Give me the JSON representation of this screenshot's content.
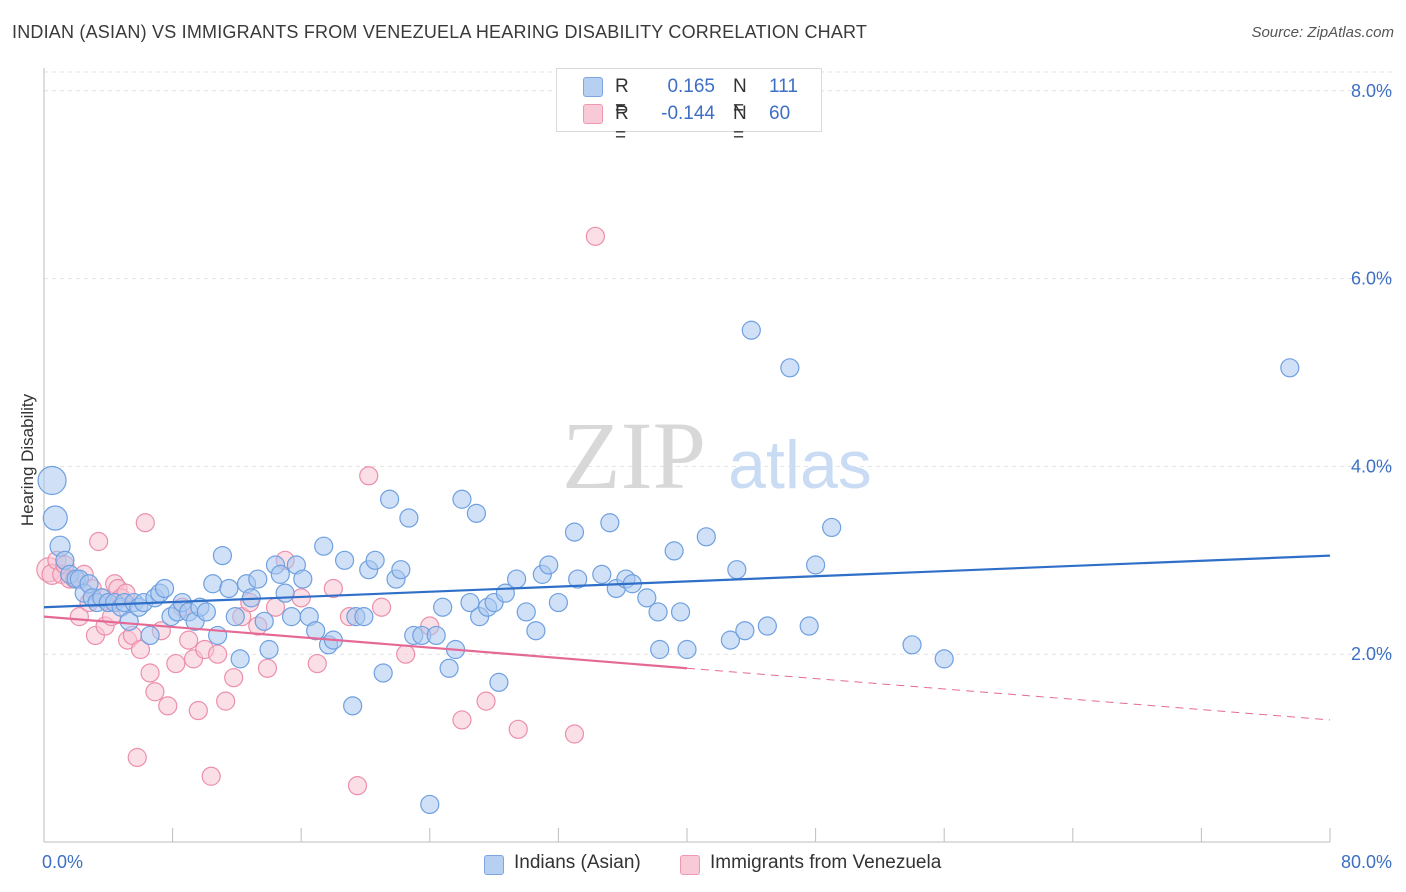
{
  "header": {
    "title": "INDIAN (ASIAN) VS IMMIGRANTS FROM VENEZUELA HEARING DISABILITY CORRELATION CHART",
    "source": "Source: ZipAtlas.com"
  },
  "watermark": {
    "zip": "ZIP",
    "atlas": "atlas"
  },
  "stats": [
    {
      "r_label": "R =",
      "r_value": "0.165",
      "n_label": "N =",
      "n_value": "111"
    },
    {
      "r_label": "R =",
      "r_value": "-0.144",
      "n_label": "N =",
      "n_value": "60"
    }
  ],
  "colors": {
    "blue_fill": "#aac8f0",
    "blue_stroke": "#6fa0e0",
    "blue_line": "#2f6fc8",
    "pink_fill": "#f7c4d3",
    "pink_stroke": "#ec8fab",
    "pink_line": "#e46a95",
    "axis_text": "#3d6fc4",
    "grid": "#e2e2e2"
  },
  "chart_data": {
    "type": "scatter",
    "ylabel": "Hearing Disability",
    "xlim": [
      0,
      80
    ],
    "ylim": [
      0,
      8.2
    ],
    "x_tick_labels": [
      "0.0%",
      "80.0%"
    ],
    "y_ticks": [
      2,
      4,
      6,
      8
    ],
    "y_tick_labels": [
      "2.0%",
      "4.0%",
      "6.0%",
      "8.0%"
    ],
    "grid": true,
    "legend_position": "bottom-center",
    "series": [
      {
        "name": "Indians (Asian)",
        "color": "#aac8f0",
        "trend": {
          "x": [
            0,
            80
          ],
          "y": [
            2.5,
            3.05
          ]
        },
        "points": [
          [
            0.5,
            3.85,
            14
          ],
          [
            0.7,
            3.45,
            12
          ],
          [
            1.0,
            3.15,
            10
          ],
          [
            1.3,
            3.0,
            9
          ],
          [
            1.6,
            2.85,
            9
          ],
          [
            2.0,
            2.8,
            9
          ],
          [
            2.2,
            2.8,
            9
          ],
          [
            2.5,
            2.65,
            9
          ],
          [
            2.8,
            2.75,
            9
          ],
          [
            3.0,
            2.6,
            9
          ],
          [
            3.3,
            2.55,
            9
          ],
          [
            3.6,
            2.6,
            9
          ],
          [
            4.0,
            2.55,
            9
          ],
          [
            4.4,
            2.55,
            9
          ],
          [
            4.8,
            2.5,
            9
          ],
          [
            5.0,
            2.55,
            9
          ],
          [
            5.3,
            2.35,
            9
          ],
          [
            5.6,
            2.55,
            9
          ],
          [
            5.9,
            2.5,
            9
          ],
          [
            6.2,
            2.55,
            9
          ],
          [
            6.6,
            2.2,
            9
          ],
          [
            6.9,
            2.6,
            9
          ],
          [
            7.2,
            2.65,
            9
          ],
          [
            7.5,
            2.7,
            9
          ],
          [
            7.9,
            2.4,
            9
          ],
          [
            8.3,
            2.45,
            9
          ],
          [
            8.6,
            2.55,
            9
          ],
          [
            9.0,
            2.45,
            9
          ],
          [
            9.4,
            2.35,
            9
          ],
          [
            9.7,
            2.5,
            9
          ],
          [
            10.1,
            2.45,
            9
          ],
          [
            10.5,
            2.75,
            9
          ],
          [
            10.8,
            2.2,
            9
          ],
          [
            11.1,
            3.05,
            9
          ],
          [
            11.5,
            2.7,
            9
          ],
          [
            11.9,
            2.4,
            9
          ],
          [
            12.2,
            1.95,
            9
          ],
          [
            12.6,
            2.75,
            9
          ],
          [
            12.9,
            2.6,
            9
          ],
          [
            13.3,
            2.8,
            9
          ],
          [
            13.7,
            2.35,
            9
          ],
          [
            14.0,
            2.05,
            9
          ],
          [
            14.4,
            2.95,
            9
          ],
          [
            14.7,
            2.85,
            9
          ],
          [
            15.0,
            2.65,
            9
          ],
          [
            15.4,
            2.4,
            9
          ],
          [
            15.7,
            2.95,
            9
          ],
          [
            16.1,
            2.8,
            9
          ],
          [
            16.5,
            2.4,
            9
          ],
          [
            16.9,
            2.25,
            9
          ],
          [
            17.4,
            3.15,
            9
          ],
          [
            17.7,
            2.1,
            9
          ],
          [
            18.0,
            2.15,
            9
          ],
          [
            18.7,
            3.0,
            9
          ],
          [
            19.2,
            1.45,
            9
          ],
          [
            19.4,
            2.4,
            9
          ],
          [
            19.9,
            2.4,
            9
          ],
          [
            20.2,
            2.9,
            9
          ],
          [
            20.6,
            3.0,
            9
          ],
          [
            21.1,
            1.8,
            9
          ],
          [
            21.5,
            3.65,
            9
          ],
          [
            21.9,
            2.8,
            9
          ],
          [
            22.2,
            2.9,
            9
          ],
          [
            22.7,
            3.45,
            9
          ],
          [
            23.0,
            2.2,
            9
          ],
          [
            23.5,
            2.2,
            9
          ],
          [
            24.0,
            0.4,
            9
          ],
          [
            24.4,
            2.2,
            9
          ],
          [
            24.8,
            2.5,
            9
          ],
          [
            25.2,
            1.85,
            9
          ],
          [
            25.6,
            2.05,
            9
          ],
          [
            26.0,
            3.65,
            9
          ],
          [
            26.5,
            2.55,
            9
          ],
          [
            26.9,
            3.5,
            9
          ],
          [
            27.1,
            2.4,
            9
          ],
          [
            27.6,
            2.5,
            9
          ],
          [
            28.0,
            2.55,
            9
          ],
          [
            28.3,
            1.7,
            9
          ],
          [
            28.7,
            2.65,
            9
          ],
          [
            29.4,
            2.8,
            9
          ],
          [
            30.0,
            2.45,
            9
          ],
          [
            30.6,
            2.25,
            9
          ],
          [
            31.0,
            2.85,
            9
          ],
          [
            31.4,
            2.95,
            9
          ],
          [
            32.0,
            2.55,
            9
          ],
          [
            33.0,
            3.3,
            9
          ],
          [
            33.2,
            2.8,
            9
          ],
          [
            34.7,
            2.85,
            9
          ],
          [
            35.2,
            3.4,
            9
          ],
          [
            35.6,
            2.7,
            9
          ],
          [
            36.2,
            2.8,
            9
          ],
          [
            36.6,
            2.75,
            9
          ],
          [
            37.5,
            2.6,
            9
          ],
          [
            38.2,
            2.45,
            9
          ],
          [
            38.3,
            2.05,
            9
          ],
          [
            39.2,
            3.1,
            9
          ],
          [
            39.6,
            2.45,
            9
          ],
          [
            40.0,
            2.05,
            9
          ],
          [
            41.2,
            3.25,
            9
          ],
          [
            42.7,
            2.15,
            9
          ],
          [
            43.1,
            2.9,
            9
          ],
          [
            43.6,
            2.25,
            9
          ],
          [
            44.0,
            5.45,
            9
          ],
          [
            45.0,
            2.3,
            9
          ],
          [
            46.4,
            5.05,
            9
          ],
          [
            47.6,
            2.3,
            9
          ],
          [
            48.0,
            2.95,
            9
          ],
          [
            49.0,
            3.35,
            9
          ],
          [
            54.0,
            2.1,
            9
          ],
          [
            56.0,
            1.95,
            9
          ],
          [
            77.5,
            5.05,
            9
          ]
        ]
      },
      {
        "name": "Immigrants from Venezuela",
        "color": "#f7c4d3",
        "trend": {
          "x": [
            0,
            40,
            80
          ],
          "y": [
            2.4,
            1.85,
            1.3
          ],
          "solid_until": 40
        },
        "points": [
          [
            0.3,
            2.9,
            12
          ],
          [
            0.5,
            2.85,
            10
          ],
          [
            0.8,
            3.0,
            9
          ],
          [
            1.1,
            2.85,
            9
          ],
          [
            1.3,
            2.95,
            9
          ],
          [
            1.6,
            2.8,
            9
          ],
          [
            1.9,
            2.8,
            9
          ],
          [
            2.2,
            2.4,
            9
          ],
          [
            2.5,
            2.85,
            9
          ],
          [
            2.8,
            2.55,
            9
          ],
          [
            3.0,
            2.7,
            9
          ],
          [
            3.2,
            2.2,
            9
          ],
          [
            3.4,
            3.2,
            9
          ],
          [
            3.6,
            2.6,
            9
          ],
          [
            3.8,
            2.3,
            9
          ],
          [
            4.0,
            2.55,
            9
          ],
          [
            4.2,
            2.4,
            9
          ],
          [
            4.4,
            2.75,
            9
          ],
          [
            4.6,
            2.7,
            9
          ],
          [
            4.8,
            2.6,
            9
          ],
          [
            5.1,
            2.65,
            9
          ],
          [
            5.2,
            2.15,
            9
          ],
          [
            5.5,
            2.2,
            9
          ],
          [
            5.8,
            0.9,
            9
          ],
          [
            6.0,
            2.05,
            9
          ],
          [
            6.3,
            3.4,
            9
          ],
          [
            6.6,
            1.8,
            9
          ],
          [
            6.9,
            1.6,
            9
          ],
          [
            7.3,
            2.25,
            9
          ],
          [
            7.7,
            1.45,
            9
          ],
          [
            8.2,
            1.9,
            9
          ],
          [
            8.6,
            2.5,
            9
          ],
          [
            9.0,
            2.15,
            9
          ],
          [
            9.3,
            1.95,
            9
          ],
          [
            9.6,
            1.4,
            9
          ],
          [
            10.0,
            2.05,
            9
          ],
          [
            10.4,
            0.7,
            9
          ],
          [
            10.8,
            2.0,
            9
          ],
          [
            11.3,
            1.5,
            9
          ],
          [
            11.8,
            1.75,
            9
          ],
          [
            12.3,
            2.4,
            9
          ],
          [
            12.8,
            2.55,
            9
          ],
          [
            13.3,
            2.3,
            9
          ],
          [
            13.9,
            1.85,
            9
          ],
          [
            14.4,
            2.5,
            9
          ],
          [
            15.0,
            3.0,
            9
          ],
          [
            16.0,
            2.6,
            9
          ],
          [
            17.0,
            1.9,
            9
          ],
          [
            18.0,
            2.7,
            9
          ],
          [
            19.0,
            2.4,
            9
          ],
          [
            19.5,
            0.6,
            9
          ],
          [
            20.2,
            3.9,
            9
          ],
          [
            21.0,
            2.5,
            9
          ],
          [
            22.5,
            2.0,
            9
          ],
          [
            24.0,
            2.3,
            9
          ],
          [
            26.0,
            1.3,
            9
          ],
          [
            27.5,
            1.5,
            9
          ],
          [
            29.5,
            1.2,
            9
          ],
          [
            33.0,
            1.15,
            9
          ],
          [
            34.3,
            6.45,
            9
          ]
        ]
      }
    ]
  }
}
